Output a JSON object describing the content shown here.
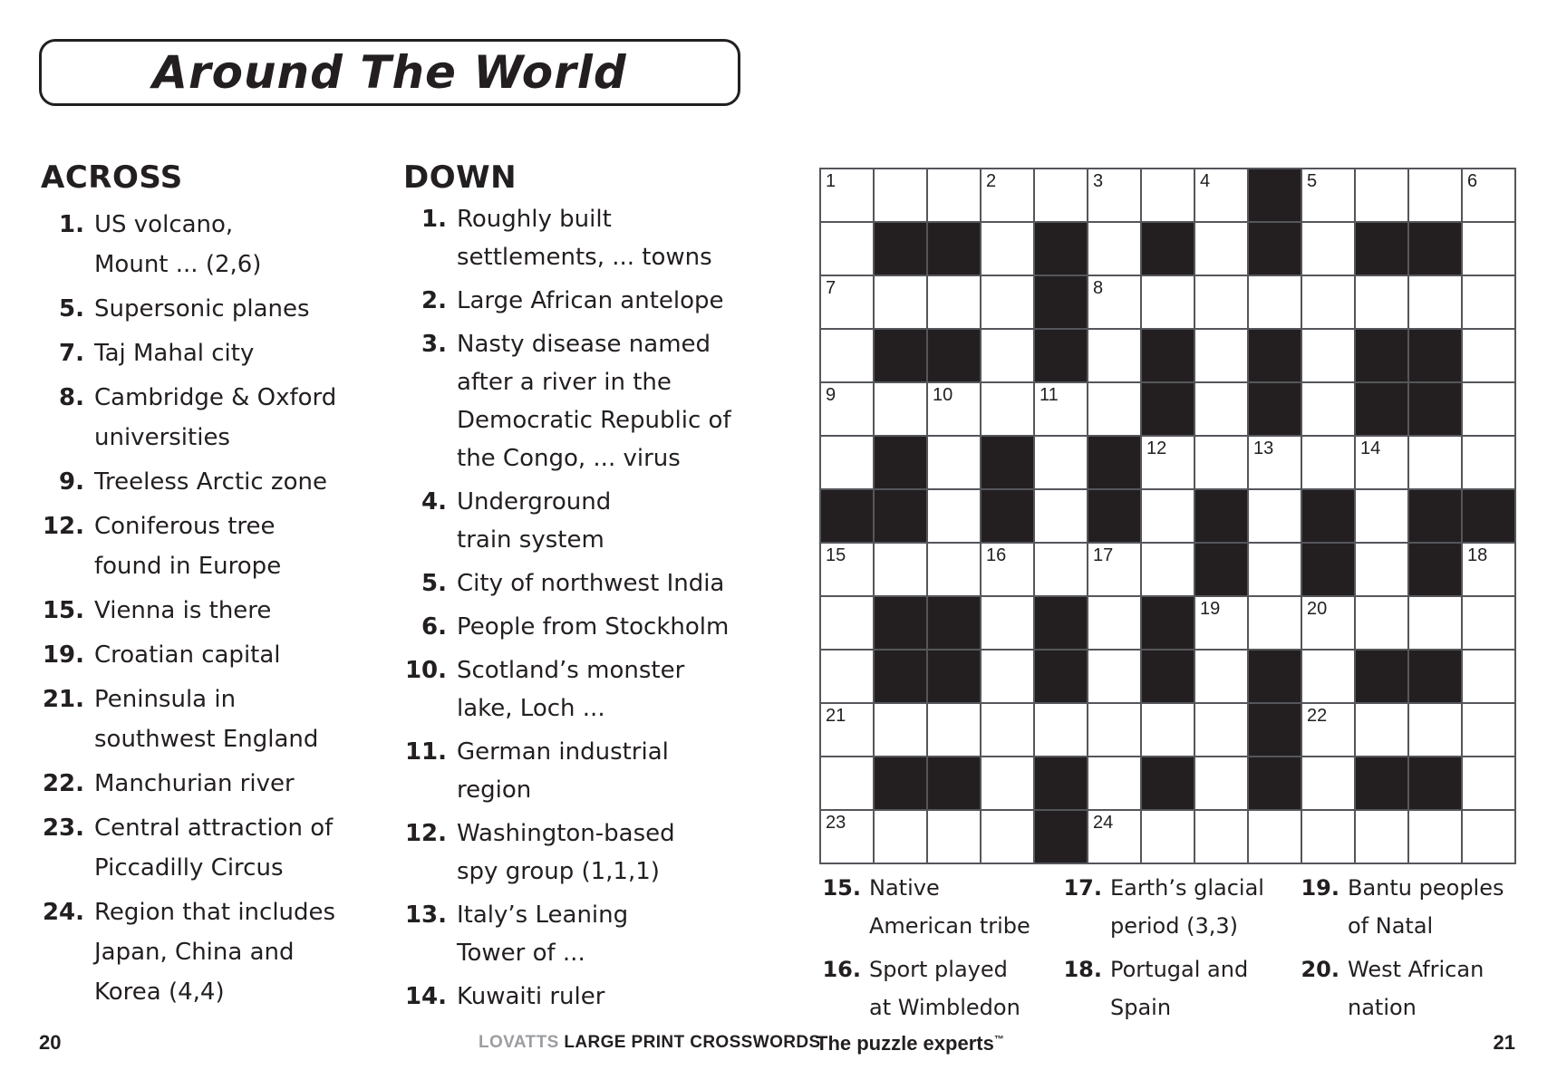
{
  "title": "Around The World",
  "across": {
    "header": "ACROSS",
    "clues": [
      {
        "n": "1.",
        "lines": [
          "US volcano,",
          "Mount ... (2,6)"
        ]
      },
      {
        "n": "5.",
        "lines": [
          "Supersonic planes"
        ]
      },
      {
        "n": "7.",
        "lines": [
          "Taj Mahal city"
        ]
      },
      {
        "n": "8.",
        "lines": [
          "Cambridge & Oxford",
          "universities"
        ]
      },
      {
        "n": "9.",
        "lines": [
          "Treeless Arctic zone"
        ]
      },
      {
        "n": "12.",
        "lines": [
          "Coniferous tree",
          "found in Europe"
        ]
      },
      {
        "n": "15.",
        "lines": [
          "Vienna is there"
        ]
      },
      {
        "n": "19.",
        "lines": [
          "Croatian capital"
        ]
      },
      {
        "n": "21.",
        "lines": [
          "Peninsula in",
          "southwest England"
        ]
      },
      {
        "n": "22.",
        "lines": [
          "Manchurian river"
        ]
      },
      {
        "n": "23.",
        "lines": [
          "Central attraction of",
          "Piccadilly Circus"
        ]
      },
      {
        "n": "24.",
        "lines": [
          "Region that includes",
          "Japan, China and",
          "Korea (4,4)"
        ]
      }
    ]
  },
  "down": {
    "header": "DOWN",
    "clues": [
      {
        "n": "1.",
        "lines": [
          "Roughly built",
          "settlements, ... towns"
        ]
      },
      {
        "n": "2.",
        "lines": [
          "Large African antelope"
        ]
      },
      {
        "n": "3.",
        "lines": [
          "Nasty disease named",
          "after a river in the",
          "Democratic Republic of",
          "the Congo, ... virus"
        ]
      },
      {
        "n": "4.",
        "lines": [
          "Underground",
          "train system"
        ]
      },
      {
        "n": "5.",
        "lines": [
          "City of northwest India"
        ]
      },
      {
        "n": "6.",
        "lines": [
          "People from Stockholm"
        ]
      },
      {
        "n": "10.",
        "lines": [
          "Scotland’s monster",
          "lake, Loch ..."
        ]
      },
      {
        "n": "11.",
        "lines": [
          "German industrial",
          "region"
        ]
      },
      {
        "n": "12.",
        "lines": [
          "Washington-based",
          "spy group (1,1,1)"
        ]
      },
      {
        "n": "13.",
        "lines": [
          "Italy’s Leaning",
          "Tower of ..."
        ]
      },
      {
        "n": "14.",
        "lines": [
          "Kuwaiti ruler"
        ]
      }
    ]
  },
  "bottom_clues": {
    "col1": [
      {
        "n": "15.",
        "lines": [
          "Native",
          "American tribe"
        ]
      },
      {
        "n": "16.",
        "lines": [
          "Sport played",
          "at Wimbledon"
        ]
      }
    ],
    "col2": [
      {
        "n": "17.",
        "lines": [
          "Earth’s glacial",
          "period (3,3)"
        ]
      },
      {
        "n": "18.",
        "lines": [
          "Portugal and",
          "Spain"
        ]
      }
    ],
    "col3": [
      {
        "n": "19.",
        "lines": [
          "Bantu peoples",
          "of Natal"
        ]
      },
      {
        "n": "20.",
        "lines": [
          "West African",
          "nation"
        ]
      }
    ]
  },
  "grid": {
    "size": 13,
    "rows": [
      "........#....",
      ".##.#.#.#.##.",
      "....#........",
      ".##.#.#.#.##.",
      "......#.#.##.",
      ".#.#.#.......",
      "##.#.#.#.#.##",
      ".......#.#.#.",
      ".##.#.#......",
      ".##.#.#.#.##.",
      "........#....",
      ".##.#.#.#.##.",
      "....#........"
    ],
    "numbers": {
      "1,1": "1",
      "1,4": "2",
      "1,6": "3",
      "1,8": "4",
      "1,10": "5",
      "1,13": "6",
      "3,1": "7",
      "3,6": "8",
      "5,1": "9",
      "5,3": "10",
      "5,5": "11",
      "6,7": "12",
      "6,9": "13",
      "6,11": "14",
      "8,1": "15",
      "8,4": "16",
      "8,6": "17",
      "8,13": "18",
      "9,8": "19",
      "9,10": "20",
      "11,1": "21",
      "11,10": "22",
      "13,1": "23",
      "13,6": "24"
    }
  },
  "footer": {
    "page_left": "20",
    "brand": "LOVATTS",
    "series": " LARGE PRINT CROSSWORDS",
    "tagline": "The puzzle experts",
    "tagline_tm": "™",
    "page_right": "21"
  },
  "colors": {
    "ink": "#231f20",
    "grid_line": "#55565a",
    "black_cell": "#231f20",
    "brand_gray": "#9b9da0",
    "paper": "#ffffff"
  }
}
